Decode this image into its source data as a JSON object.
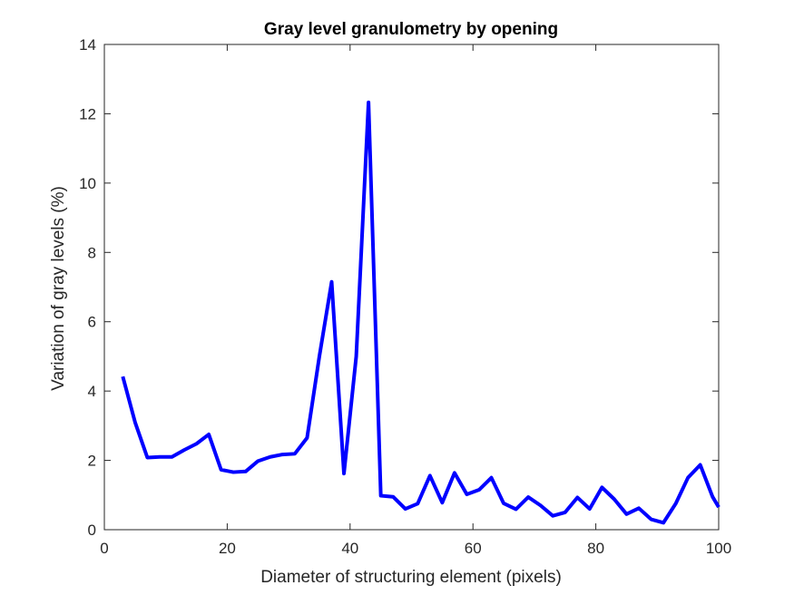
{
  "chart_data": {
    "type": "line",
    "title": "Gray level granulometry by opening",
    "xlabel": "Diameter of structuring element (pixels)",
    "ylabel": "Variation of gray levels (%)",
    "xlim": [
      0,
      100
    ],
    "ylim": [
      0,
      14
    ],
    "xticks": [
      0,
      20,
      40,
      60,
      80,
      100
    ],
    "yticks": [
      0,
      2,
      4,
      6,
      8,
      10,
      12,
      14
    ],
    "grid": false,
    "series": [
      {
        "color": "#0000ff",
        "x": [
          3,
          5,
          7,
          9,
          11,
          13,
          15,
          17,
          19,
          21,
          23,
          25,
          27,
          29,
          31,
          33,
          35,
          37,
          39,
          41,
          43,
          45,
          47,
          49,
          51,
          53,
          55,
          57,
          59,
          61,
          63,
          65,
          67,
          69,
          71,
          73,
          75,
          77,
          79,
          81,
          83,
          85,
          87,
          89,
          91,
          93,
          95,
          97,
          99,
          100
        ],
        "y": [
          4.42,
          3.1,
          2.08,
          2.1,
          2.1,
          2.3,
          2.48,
          2.75,
          1.73,
          1.66,
          1.68,
          1.98,
          2.1,
          2.17,
          2.19,
          2.65,
          5.0,
          7.15,
          1.62,
          5.0,
          12.33,
          0.98,
          0.95,
          0.6,
          0.75,
          1.56,
          0.78,
          1.64,
          1.02,
          1.15,
          1.5,
          0.76,
          0.59,
          0.94,
          0.7,
          0.4,
          0.5,
          0.93,
          0.6,
          1.22,
          0.88,
          0.45,
          0.62,
          0.3,
          0.2,
          0.75,
          1.5,
          1.87,
          0.95,
          0.65
        ]
      }
    ]
  }
}
